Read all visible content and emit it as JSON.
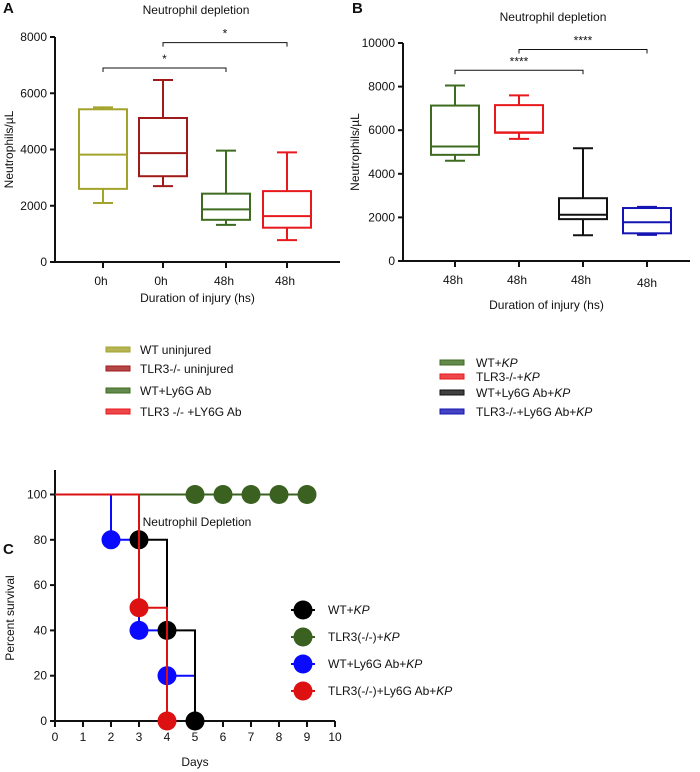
{
  "chart_data": [
    {
      "panel": "A",
      "type": "box",
      "title": "Neutrophil depletion",
      "xlabel": "Duration of injury (hs)",
      "ylabel": "Neutrophils/µL",
      "ylim": [
        0,
        8000
      ],
      "yticks": [
        "0",
        "2000",
        "4000",
        "6000",
        "8000"
      ],
      "categories": [
        "0h",
        "0h",
        "48h",
        "48h"
      ],
      "series": [
        {
          "name": "WT uninjured",
          "color": "#a3a32b",
          "min": 2100,
          "q1": 2600,
          "median": 3820,
          "q3": 5430,
          "max": 5500
        },
        {
          "name": "TLR3-/- uninjured",
          "color": "#a11a1a",
          "min": 2700,
          "q1": 3050,
          "median": 3870,
          "q3": 5120,
          "max": 6470
        },
        {
          "name": "WT+Ly6G Ab",
          "color": "#3d6b1f",
          "min": 1320,
          "q1": 1500,
          "median": 1870,
          "q3": 2430,
          "max": 3960
        },
        {
          "name": "TLR3 -/- +LY6G Ab",
          "color": "#e8191c",
          "min": 780,
          "q1": 1220,
          "median": 1630,
          "q3": 2520,
          "max": 3900
        }
      ],
      "significance": [
        {
          "from": 0,
          "to": 2,
          "y": 6900,
          "label": "*"
        },
        {
          "from": 1,
          "to": 3,
          "y": 7800,
          "label": "*"
        }
      ],
      "legend_position": "below"
    },
    {
      "panel": "B",
      "type": "box",
      "title": "Neutrophil depletion",
      "xlabel": "Duration of injury (hs)",
      "ylabel": "Neutrophils/µL",
      "ylim": [
        0,
        10000
      ],
      "yticks": [
        "0",
        "2000",
        "4000",
        "6000",
        "8000",
        "10000"
      ],
      "categories": [
        "48h",
        "48h",
        "48h",
        "48h"
      ],
      "series": [
        {
          "name": "WT+",
          "name_italic": "KP",
          "color": "#3d6b1f",
          "min": 4600,
          "q1": 4870,
          "median": 5250,
          "q3": 7130,
          "max": 8050
        },
        {
          "name": "TLR3-/-+",
          "name_italic": "KP",
          "color": "#e8191c",
          "min": 5600,
          "q1": 5880,
          "median": 5900,
          "q3": 7150,
          "max": 7600
        },
        {
          "name": "WT+Ly6G Ab+",
          "name_italic": "KP",
          "color": "#111111",
          "min": 1180,
          "q1": 1920,
          "median": 2120,
          "q3": 2880,
          "max": 5170
        },
        {
          "name": "TLR3-/-+Ly6G Ab+",
          "name_italic": "KP",
          "color": "#1414b4",
          "min": 1200,
          "q1": 1270,
          "median": 1780,
          "q3": 2430,
          "max": 2480
        }
      ],
      "significance": [
        {
          "from": 0,
          "to": 2,
          "y": 8750,
          "label": "****"
        },
        {
          "from": 1,
          "to": 3,
          "y": 9700,
          "label": "****"
        }
      ],
      "legend_position": "below"
    },
    {
      "panel": "C",
      "type": "survival",
      "title": "Neutrophil Depletion",
      "xlabel": "Days",
      "ylabel": "Percent survival",
      "xlim": [
        0,
        10
      ],
      "ylim": [
        0,
        100
      ],
      "xticks": [
        "0",
        "1",
        "2",
        "3",
        "4",
        "5",
        "6",
        "7",
        "8",
        "9",
        "10"
      ],
      "yticks": [
        "0",
        "20",
        "40",
        "60",
        "80",
        "100"
      ],
      "series": [
        {
          "name": "TLR3(-/-)+",
          "name_italic": "KP",
          "color": "#3b6120",
          "steps": [],
          "end": 9,
          "markers": [
            [
              5,
              100
            ],
            [
              6,
              100
            ],
            [
              7,
              100
            ],
            [
              8,
              100
            ],
            [
              9,
              100
            ]
          ]
        },
        {
          "name": "WT+Ly6G Ab+",
          "name_italic": "KP",
          "color": "#0a0aff",
          "steps": [
            [
              2,
              80
            ],
            [
              3,
              40
            ],
            [
              4,
              20
            ]
          ],
          "end": 5,
          "markers": [
            [
              2,
              80
            ],
            [
              3,
              40
            ],
            [
              4,
              20
            ]
          ]
        },
        {
          "name": "WT+",
          "name_italic": "KP",
          "color": "#000000",
          "steps": [
            [
              3,
              80
            ],
            [
              4,
              40
            ],
            [
              5,
              0
            ]
          ],
          "end": 5,
          "markers": [
            [
              3,
              80
            ],
            [
              4,
              40
            ],
            [
              5,
              0
            ]
          ]
        },
        {
          "name": "TLR3(-/-)+Ly6G Ab+",
          "name_italic": "KP",
          "color": "#dd1111",
          "steps": [
            [
              3,
              50
            ],
            [
              4,
              0
            ]
          ],
          "end": 4,
          "markers": [
            [
              3,
              50
            ],
            [
              4,
              0
            ]
          ]
        }
      ],
      "legend_order": [
        2,
        0,
        1,
        3
      ],
      "legend_position": "right"
    }
  ]
}
